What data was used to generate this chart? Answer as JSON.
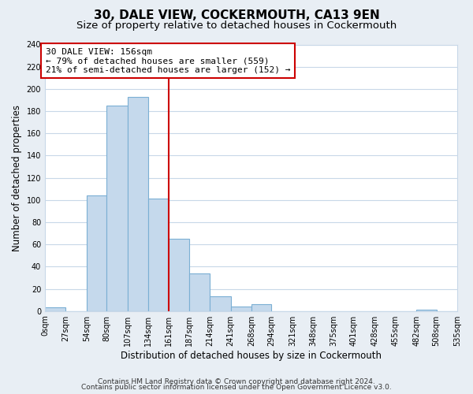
{
  "title": "30, DALE VIEW, COCKERMOUTH, CA13 9EN",
  "subtitle": "Size of property relative to detached houses in Cockermouth",
  "xlabel": "Distribution of detached houses by size in Cockermouth",
  "ylabel": "Number of detached properties",
  "bar_edges": [
    0,
    27,
    54,
    80,
    107,
    134,
    161,
    187,
    214,
    241,
    268,
    294,
    321,
    348,
    375,
    401,
    428,
    455,
    482,
    508,
    535
  ],
  "bar_heights": [
    3,
    0,
    104,
    185,
    193,
    101,
    65,
    34,
    13,
    4,
    6,
    0,
    0,
    0,
    0,
    0,
    0,
    0,
    1,
    0
  ],
  "bar_color": "#c5d9ec",
  "bar_edge_color": "#7bafd4",
  "vline_x": 161,
  "vline_color": "#cc0000",
  "ann_line1": "30 DALE VIEW: 156sqm",
  "ann_line2": "← 79% of detached houses are smaller (559)",
  "ann_line3": "21% of semi-detached houses are larger (152) →",
  "ylim": [
    0,
    240
  ],
  "yticks": [
    0,
    20,
    40,
    60,
    80,
    100,
    120,
    140,
    160,
    180,
    200,
    220,
    240
  ],
  "tick_labels": [
    "0sqm",
    "27sqm",
    "54sqm",
    "80sqm",
    "107sqm",
    "134sqm",
    "161sqm",
    "187sqm",
    "214sqm",
    "241sqm",
    "268sqm",
    "294sqm",
    "321sqm",
    "348sqm",
    "375sqm",
    "401sqm",
    "428sqm",
    "455sqm",
    "482sqm",
    "508sqm",
    "535sqm"
  ],
  "footer_line1": "Contains HM Land Registry data © Crown copyright and database right 2024.",
  "footer_line2": "Contains public sector information licensed under the Open Government Licence v3.0.",
  "bg_color": "#e8eef4",
  "plot_bg_color": "#ffffff",
  "grid_color": "#c8d8e8",
  "title_fontsize": 11,
  "subtitle_fontsize": 9.5,
  "axis_label_fontsize": 8.5,
  "tick_fontsize": 7,
  "ann_fontsize": 8,
  "footer_fontsize": 6.5
}
